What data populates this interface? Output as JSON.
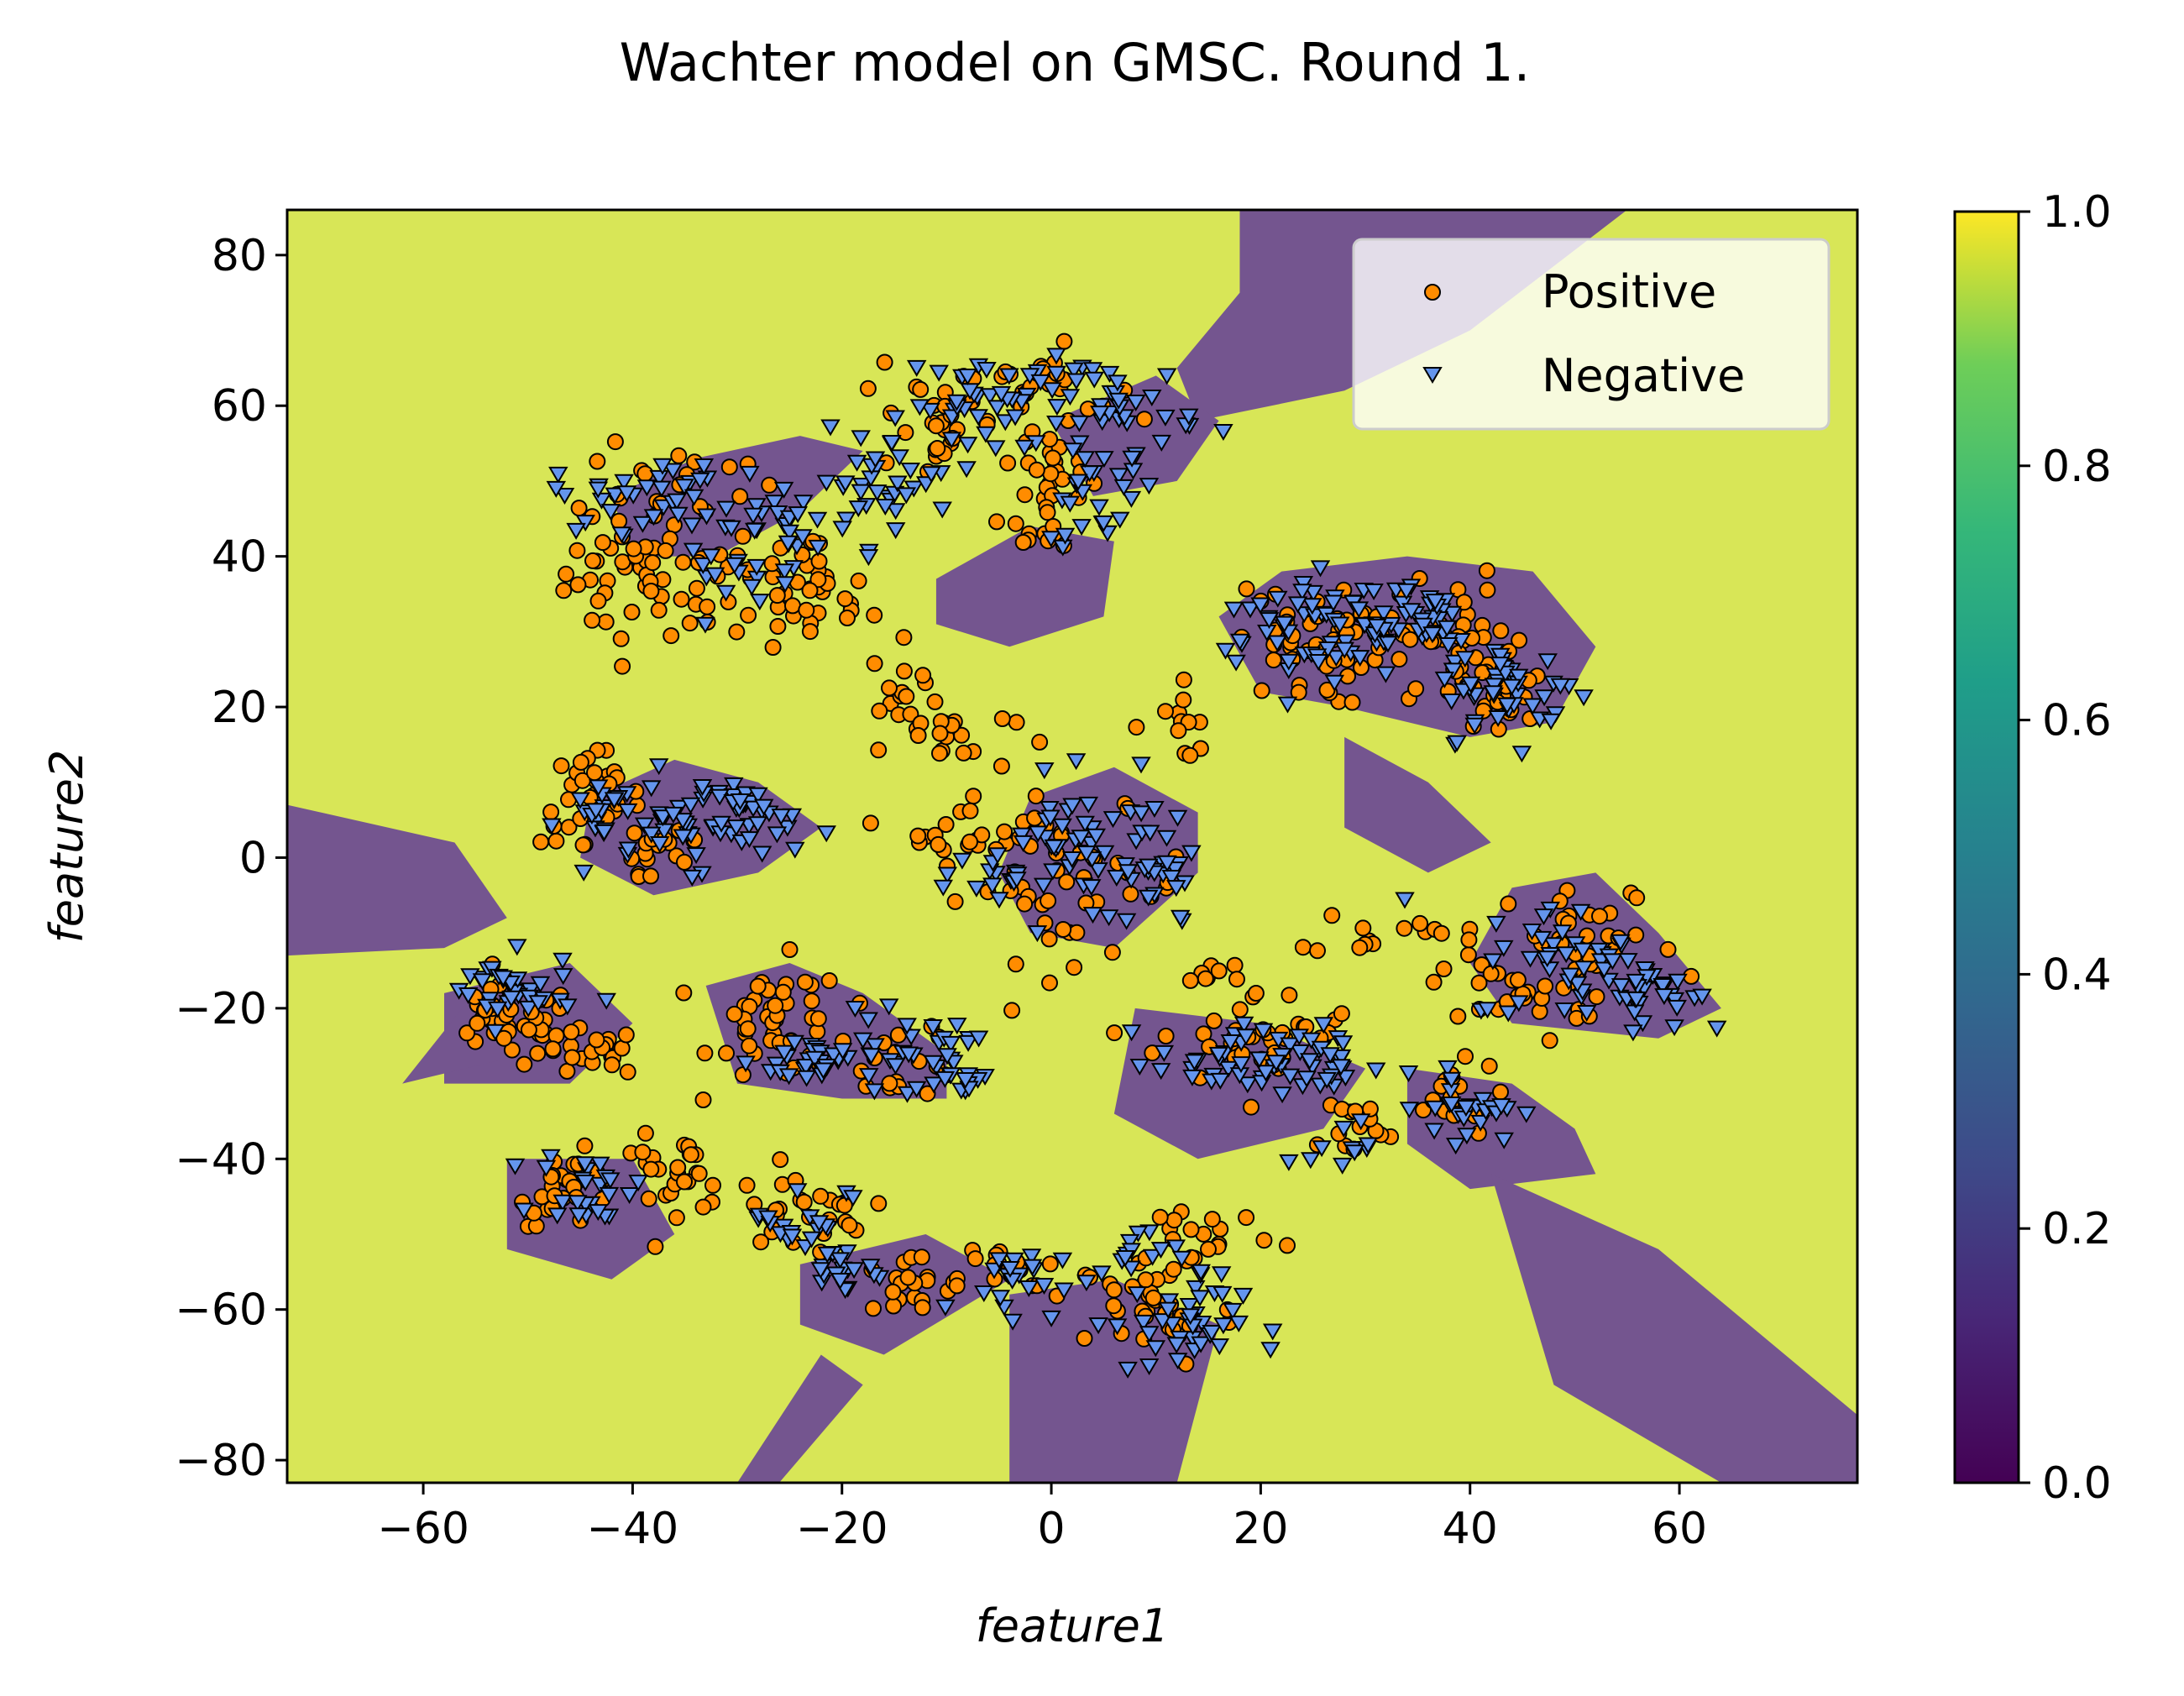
{
  "chart_data": {
    "type": "scatter",
    "title": "Wachter model on GMSC. Round 1.",
    "xlabel": "feature1",
    "ylabel": "feature2",
    "xlim": [
      -73,
      77
    ],
    "ylim": [
      -83,
      86
    ],
    "xticks": [
      -60,
      -40,
      -20,
      0,
      20,
      40,
      60
    ],
    "yticks": [
      -80,
      -60,
      -40,
      -20,
      0,
      20,
      40,
      60,
      80
    ],
    "colorbar": {
      "colormap": "viridis",
      "range": [
        0,
        1
      ],
      "ticks": [
        "0.0",
        "0.2",
        "0.4",
        "0.6",
        "0.8",
        "1.0"
      ]
    },
    "legend": {
      "position": "top-right"
    },
    "colors": {
      "background_region": "#d8e657",
      "decision_region": "#74558f",
      "positive": "#ff8c00",
      "negative": "#6495ed"
    },
    "decision_regions": [
      [
        [
          18,
          86
        ],
        [
          55,
          86
        ],
        [
          40,
          70
        ],
        [
          28,
          62
        ],
        [
          14,
          58
        ],
        [
          12,
          65
        ],
        [
          18,
          75
        ]
      ],
      [
        [
          -73,
          7
        ],
        [
          -57,
          2
        ],
        [
          -52,
          -8
        ],
        [
          -58,
          -12
        ],
        [
          -73,
          -13
        ]
      ],
      [
        [
          -44,
          8
        ],
        [
          -36,
          13
        ],
        [
          -28,
          10
        ],
        [
          -22,
          4
        ],
        [
          -28,
          -2
        ],
        [
          -38,
          -5
        ],
        [
          -45,
          0
        ]
      ],
      [
        [
          -42,
          48
        ],
        [
          -34,
          53
        ],
        [
          -24,
          56
        ],
        [
          -18,
          54
        ],
        [
          -24,
          46
        ],
        [
          -32,
          40
        ],
        [
          -40,
          40
        ]
      ],
      [
        [
          -11,
          37
        ],
        [
          -2,
          44
        ],
        [
          6,
          42
        ],
        [
          5,
          32
        ],
        [
          -4,
          28
        ],
        [
          -11,
          31
        ]
      ],
      [
        [
          -2,
          8
        ],
        [
          6,
          12
        ],
        [
          14,
          6
        ],
        [
          14,
          -2
        ],
        [
          6,
          -12
        ],
        [
          -2,
          -10
        ],
        [
          -5,
          -2
        ]
      ],
      [
        [
          16,
          32
        ],
        [
          22,
          38
        ],
        [
          34,
          40
        ],
        [
          46,
          38
        ],
        [
          52,
          28
        ],
        [
          48,
          18
        ],
        [
          40,
          16
        ],
        [
          28,
          20
        ],
        [
          20,
          22
        ]
      ],
      [
        [
          28,
          16
        ],
        [
          36,
          10
        ],
        [
          42,
          2
        ],
        [
          36,
          -2
        ],
        [
          28,
          4
        ]
      ],
      [
        [
          44,
          -4
        ],
        [
          52,
          -2
        ],
        [
          58,
          -10
        ],
        [
          64,
          -20
        ],
        [
          58,
          -24
        ],
        [
          44,
          -22
        ],
        [
          40,
          -14
        ]
      ],
      [
        [
          -33,
          -17
        ],
        [
          -25,
          -14
        ],
        [
          -18,
          -18
        ],
        [
          -10,
          -26
        ],
        [
          -10,
          -32
        ],
        [
          -20,
          -32
        ],
        [
          -30,
          -30
        ]
      ],
      [
        [
          8,
          -20
        ],
        [
          20,
          -22
        ],
        [
          30,
          -28
        ],
        [
          26,
          -36
        ],
        [
          14,
          -40
        ],
        [
          6,
          -34
        ]
      ],
      [
        [
          34,
          -28
        ],
        [
          44,
          -30
        ],
        [
          50,
          -36
        ],
        [
          52,
          -42
        ],
        [
          40,
          -44
        ],
        [
          34,
          -38
        ]
      ],
      [
        [
          42,
          -42
        ],
        [
          58,
          -52
        ],
        [
          77,
          -74
        ],
        [
          77,
          -83
        ],
        [
          64,
          -83
        ],
        [
          48,
          -70
        ]
      ],
      [
        [
          -24,
          -54
        ],
        [
          -12,
          -50
        ],
        [
          -4,
          -56
        ],
        [
          -16,
          -66
        ],
        [
          -24,
          -62
        ]
      ],
      [
        [
          -4,
          -58
        ],
        [
          6,
          -56
        ],
        [
          16,
          -62
        ],
        [
          12,
          -83
        ],
        [
          -4,
          -83
        ]
      ],
      [
        [
          -52,
          -40
        ],
        [
          -40,
          -40
        ],
        [
          -36,
          -50
        ],
        [
          -42,
          -56
        ],
        [
          -52,
          -52
        ]
      ],
      [
        [
          -58,
          -18
        ],
        [
          -46,
          -14
        ],
        [
          -40,
          -22
        ],
        [
          -46,
          -30
        ],
        [
          -58,
          -30
        ]
      ],
      [
        [
          0,
          58
        ],
        [
          10,
          64
        ],
        [
          16,
          58
        ],
        [
          12,
          50
        ],
        [
          4,
          48
        ]
      ],
      [
        [
          -30,
          -83
        ],
        [
          -22,
          -66
        ],
        [
          -18,
          -70
        ],
        [
          -26,
          -83
        ]
      ],
      [
        [
          -62,
          -30
        ],
        [
          -54,
          -16
        ],
        [
          -50,
          -26
        ]
      ]
    ],
    "series": [
      {
        "name": "Positive",
        "marker": "circle",
        "clusters": [
          {
            "center": [
              -40,
              38
            ],
            "sx": 4,
            "sy": 6,
            "n": 40
          },
          {
            "center": [
              -30,
              36
            ],
            "sx": 6,
            "sy": 5,
            "n": 35
          },
          {
            "center": [
              -22,
              34
            ],
            "sx": 3,
            "sy": 4,
            "n": 22
          },
          {
            "center": [
              -36,
              50
            ],
            "sx": 6,
            "sy": 3,
            "n": 18
          },
          {
            "center": [
              -12,
              58
            ],
            "sx": 3,
            "sy": 5,
            "n": 25
          },
          {
            "center": [
              0,
              50
            ],
            "sx": 3,
            "sy": 8,
            "n": 35
          },
          {
            "center": [
              -2,
              63
            ],
            "sx": 5,
            "sy": 3,
            "n": 25
          },
          {
            "center": [
              -14,
              22
            ],
            "sx": 2,
            "sy": 4,
            "n": 15
          },
          {
            "center": [
              -10,
              16
            ],
            "sx": 4,
            "sy": 3,
            "n": 18
          },
          {
            "center": [
              -8,
              4
            ],
            "sx": 4,
            "sy": 3,
            "n": 20
          },
          {
            "center": [
              2,
              -4
            ],
            "sx": 7,
            "sy": 6,
            "n": 45
          },
          {
            "center": [
              12,
              18
            ],
            "sx": 3,
            "sy": 3,
            "n": 12
          },
          {
            "center": [
              -44,
              8
            ],
            "sx": 3,
            "sy": 4,
            "n": 30
          },
          {
            "center": [
              -38,
              2
            ],
            "sx": 4,
            "sy": 5,
            "n": 20
          },
          {
            "center": [
              -52,
              -22
            ],
            "sx": 4,
            "sy": 3,
            "n": 40
          },
          {
            "center": [
              -44,
              -26
            ],
            "sx": 3,
            "sy": 2,
            "n": 22
          },
          {
            "center": [
              -26,
              -22
            ],
            "sx": 4,
            "sy": 5,
            "n": 45
          },
          {
            "center": [
              -15,
              -27
            ],
            "sx": 4,
            "sy": 3,
            "n": 20
          },
          {
            "center": [
              -46,
              -44
            ],
            "sx": 3,
            "sy": 3,
            "n": 25
          },
          {
            "center": [
              -36,
              -42
            ],
            "sx": 4,
            "sy": 3,
            "n": 30
          },
          {
            "center": [
              -24,
              -47
            ],
            "sx": 4,
            "sy": 3,
            "n": 25
          },
          {
            "center": [
              -14,
              -57
            ],
            "sx": 4,
            "sy": 3,
            "n": 20
          },
          {
            "center": [
              -4,
              -56
            ],
            "sx": 3,
            "sy": 3,
            "n": 15
          },
          {
            "center": [
              10,
              -60
            ],
            "sx": 5,
            "sy": 5,
            "n": 35
          },
          {
            "center": [
              14,
              -50
            ],
            "sx": 5,
            "sy": 3,
            "n": 20
          },
          {
            "center": [
              20,
              -24
            ],
            "sx": 6,
            "sy": 4,
            "n": 40
          },
          {
            "center": [
              16,
              -15
            ],
            "sx": 2,
            "sy": 1,
            "n": 8
          },
          {
            "center": [
              30,
              -10
            ],
            "sx": 3,
            "sy": 2,
            "n": 10
          },
          {
            "center": [
              40,
              -12
            ],
            "sx": 3,
            "sy": 3,
            "n": 12
          },
          {
            "center": [
              28,
              -36
            ],
            "sx": 3,
            "sy": 3,
            "n": 15
          },
          {
            "center": [
              38,
              -32
            ],
            "sx": 3,
            "sy": 3,
            "n": 20
          },
          {
            "center": [
              24,
              28
            ],
            "sx": 4,
            "sy": 5,
            "n": 40
          },
          {
            "center": [
              36,
              30
            ],
            "sx": 5,
            "sy": 5,
            "n": 40
          },
          {
            "center": [
              42,
              22
            ],
            "sx": 4,
            "sy": 4,
            "n": 30
          },
          {
            "center": [
              52,
              -12
            ],
            "sx": 5,
            "sy": 5,
            "n": 30
          },
          {
            "center": [
              46,
              -18
            ],
            "sx": 4,
            "sy": 3,
            "n": 25
          }
        ]
      },
      {
        "name": "Negative",
        "marker": "triangle-down",
        "clusters": [
          {
            "center": [
              -38,
              48
            ],
            "sx": 6,
            "sy": 3,
            "n": 35
          },
          {
            "center": [
              -26,
              44
            ],
            "sx": 5,
            "sy": 4,
            "n": 30
          },
          {
            "center": [
              -16,
              50
            ],
            "sx": 4,
            "sy": 4,
            "n": 30
          },
          {
            "center": [
              -6,
              60
            ],
            "sx": 5,
            "sy": 4,
            "n": 35
          },
          {
            "center": [
              6,
              60
            ],
            "sx": 5,
            "sy": 4,
            "n": 40
          },
          {
            "center": [
              4,
              48
            ],
            "sx": 4,
            "sy": 4,
            "n": 25
          },
          {
            "center": [
              -30,
              38
            ],
            "sx": 3,
            "sy": 3,
            "n": 15
          },
          {
            "center": [
              -42,
              5
            ],
            "sx": 3,
            "sy": 4,
            "n": 25
          },
          {
            "center": [
              -34,
              5
            ],
            "sx": 4,
            "sy": 4,
            "n": 35
          },
          {
            "center": [
              -28,
              5
            ],
            "sx": 3,
            "sy": 3,
            "n": 20
          },
          {
            "center": [
              4,
              2
            ],
            "sx": 5,
            "sy": 5,
            "n": 45
          },
          {
            "center": [
              -4,
              -2
            ],
            "sx": 3,
            "sy": 4,
            "n": 20
          },
          {
            "center": [
              10,
              -4
            ],
            "sx": 3,
            "sy": 4,
            "n": 20
          },
          {
            "center": [
              -52,
              -18
            ],
            "sx": 4,
            "sy": 3,
            "n": 35
          },
          {
            "center": [
              -22,
              -27
            ],
            "sx": 4,
            "sy": 2,
            "n": 30
          },
          {
            "center": [
              -14,
              -26
            ],
            "sx": 4,
            "sy": 3,
            "n": 30
          },
          {
            "center": [
              -8,
              -29
            ],
            "sx": 2,
            "sy": 2,
            "n": 12
          },
          {
            "center": [
              -44,
              -44
            ],
            "sx": 3,
            "sy": 3,
            "n": 25
          },
          {
            "center": [
              -24,
              -48
            ],
            "sx": 3,
            "sy": 3,
            "n": 20
          },
          {
            "center": [
              -20,
              -55
            ],
            "sx": 3,
            "sy": 2,
            "n": 18
          },
          {
            "center": [
              -4,
              -56
            ],
            "sx": 3,
            "sy": 3,
            "n": 20
          },
          {
            "center": [
              12,
              -62
            ],
            "sx": 4,
            "sy": 4,
            "n": 40
          },
          {
            "center": [
              8,
              -54
            ],
            "sx": 3,
            "sy": 3,
            "n": 15
          },
          {
            "center": [
              18,
              -27
            ],
            "sx": 5,
            "sy": 3,
            "n": 40
          },
          {
            "center": [
              26,
              -28
            ],
            "sx": 3,
            "sy": 3,
            "n": 20
          },
          {
            "center": [
              40,
              -33
            ],
            "sx": 3,
            "sy": 3,
            "n": 25
          },
          {
            "center": [
              28,
              -38
            ],
            "sx": 2,
            "sy": 2,
            "n": 10
          },
          {
            "center": [
              24,
              30
            ],
            "sx": 5,
            "sy": 5,
            "n": 45
          },
          {
            "center": [
              34,
              32
            ],
            "sx": 5,
            "sy": 4,
            "n": 50
          },
          {
            "center": [
              44,
              22
            ],
            "sx": 4,
            "sy": 4,
            "n": 45
          },
          {
            "center": [
              50,
              -14
            ],
            "sx": 6,
            "sy": 5,
            "n": 45
          },
          {
            "center": [
              58,
              -18
            ],
            "sx": 3,
            "sy": 3,
            "n": 25
          }
        ]
      }
    ]
  }
}
